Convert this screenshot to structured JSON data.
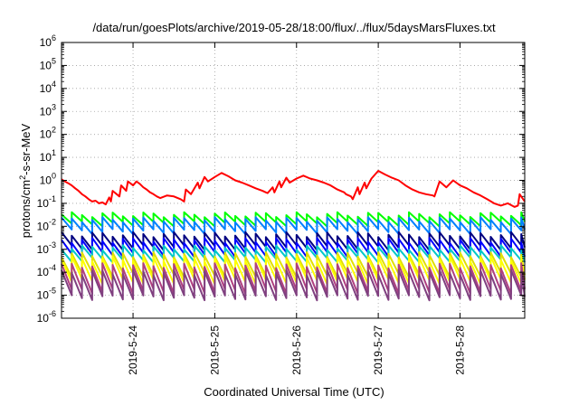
{
  "chart_data": {
    "type": "line",
    "title": "/data/run/goesPlots/archive/2019-05-28/18:00/flux/../flux/5daysMarsFluxes.txt",
    "xlabel": "Coordinated Universal Time (UTC)",
    "ylabel_parts": {
      "base": "protons/cm",
      "exp": "2",
      "rest": "-s-sr-MeV"
    },
    "y_scale": "log",
    "ylim": [
      1e-06,
      1000000.0
    ],
    "y_ticks": [
      {
        "base": "10",
        "exp": "-6",
        "value": 1e-06
      },
      {
        "base": "10",
        "exp": "-5",
        "value": 1e-05
      },
      {
        "base": "10",
        "exp": "-4",
        "value": 0.0001
      },
      {
        "base": "10",
        "exp": "-3",
        "value": 0.001
      },
      {
        "base": "10",
        "exp": "-2",
        "value": 0.01
      },
      {
        "base": "10",
        "exp": "-1",
        "value": 0.1
      },
      {
        "base": "10",
        "exp": "0",
        "value": 1
      },
      {
        "base": "10",
        "exp": "1",
        "value": 10.0
      },
      {
        "base": "10",
        "exp": "2",
        "value": 100.0
      },
      {
        "base": "10",
        "exp": "3",
        "value": 1000.0
      },
      {
        "base": "10",
        "exp": "4",
        "value": 10000.0
      },
      {
        "base": "10",
        "exp": "5",
        "value": 100000.0
      },
      {
        "base": "10",
        "exp": "6",
        "value": 1000000.0
      }
    ],
    "xlim": [
      "2019-05-23T03:00",
      "2019-05-28T19:00"
    ],
    "x_ticks": [
      {
        "label": "2019-5-24",
        "value": "2019-05-24T00:00"
      },
      {
        "label": "2019-5-25",
        "value": "2019-05-25T00:00"
      },
      {
        "label": "2019-5-26",
        "value": "2019-05-26T00:00"
      },
      {
        "label": "2019-5-27",
        "value": "2019-05-27T00:00"
      },
      {
        "label": "2019-5-28",
        "value": "2019-05-28T00:00"
      }
    ],
    "grid": true,
    "legend": "none",
    "series": [
      {
        "color": "#ff0000",
        "x": [
          "2019-05-23T03:00",
          "2019-05-23T04:00",
          "2019-05-23T05:00",
          "2019-05-23T06:00",
          "2019-05-23T07:00",
          "2019-05-23T08:00",
          "2019-05-23T09:00",
          "2019-05-23T10:00",
          "2019-05-23T11:00",
          "2019-05-23T12:00",
          "2019-05-23T13:00",
          "2019-05-23T14:00",
          "2019-05-23T15:00",
          "2019-05-23T16:00",
          "2019-05-23T17:00",
          "2019-05-23T17:30",
          "2019-05-23T18:00",
          "2019-05-23T20:00",
          "2019-05-23T20:30",
          "2019-05-23T22:00",
          "2019-05-23T22:30",
          "2019-05-24T00:00",
          "2019-05-24T01:00",
          "2019-05-24T02:00",
          "2019-05-24T03:00",
          "2019-05-24T04:00",
          "2019-05-24T05:00",
          "2019-05-24T06:00",
          "2019-05-24T07:00",
          "2019-05-24T08:00",
          "2019-05-24T10:00",
          "2019-05-24T12:00",
          "2019-05-24T14:00",
          "2019-05-24T15:00",
          "2019-05-24T15:30",
          "2019-05-24T17:00",
          "2019-05-24T19:00",
          "2019-05-24T19:30",
          "2019-05-24T21:00",
          "2019-05-24T22:00",
          "2019-05-25T00:00",
          "2019-05-25T02:00",
          "2019-05-25T04:00",
          "2019-05-25T06:00",
          "2019-05-25T08:00",
          "2019-05-25T10:00",
          "2019-05-25T12:00",
          "2019-05-25T14:00",
          "2019-05-25T15:00",
          "2019-05-25T15:30",
          "2019-05-25T17:00",
          "2019-05-25T17:30",
          "2019-05-25T19:00",
          "2019-05-25T19:30",
          "2019-05-25T21:00",
          "2019-05-25T22:00",
          "2019-05-26T00:00",
          "2019-05-26T02:00",
          "2019-05-26T04:00",
          "2019-05-26T06:00",
          "2019-05-26T08:00",
          "2019-05-26T10:00",
          "2019-05-26T12:00",
          "2019-05-26T14:00",
          "2019-05-26T14:30",
          "2019-05-26T16:00",
          "2019-05-26T16:30",
          "2019-05-26T18:00",
          "2019-05-26T18:30",
          "2019-05-26T20:00",
          "2019-05-26T20:30",
          "2019-05-26T22:00",
          "2019-05-27T00:00",
          "2019-05-27T02:00",
          "2019-05-27T04:00",
          "2019-05-27T06:00",
          "2019-05-27T08:00",
          "2019-05-27T10:00",
          "2019-05-27T12:00",
          "2019-05-27T14:00",
          "2019-05-27T16:00",
          "2019-05-27T16:30",
          "2019-05-27T18:00",
          "2019-05-27T20:00",
          "2019-05-27T22:00",
          "2019-05-28T00:00",
          "2019-05-28T02:00",
          "2019-05-28T04:00",
          "2019-05-28T06:00",
          "2019-05-28T08:00",
          "2019-05-28T10:00",
          "2019-05-28T12:00",
          "2019-05-28T14:00",
          "2019-05-28T16:00",
          "2019-05-28T17:00",
          "2019-05-28T17:30",
          "2019-05-28T19:00"
        ],
        "values": [
          1.1,
          0.9,
          0.75,
          0.6,
          0.45,
          0.35,
          0.25,
          0.2,
          0.15,
          0.12,
          0.13,
          0.1,
          0.11,
          0.09,
          0.18,
          0.12,
          0.35,
          0.2,
          0.6,
          0.35,
          0.9,
          0.6,
          0.9,
          0.7,
          0.5,
          0.4,
          0.3,
          0.25,
          0.2,
          0.17,
          0.22,
          0.2,
          0.15,
          0.12,
          0.4,
          0.25,
          0.8,
          0.45,
          1.4,
          0.9,
          1.4,
          2.1,
          1.5,
          1.0,
          0.8,
          0.6,
          0.45,
          0.35,
          0.3,
          0.28,
          0.5,
          0.3,
          0.9,
          0.5,
          1.3,
          0.8,
          1.2,
          1.6,
          1.2,
          1.0,
          0.8,
          0.6,
          0.4,
          0.3,
          0.25,
          0.2,
          0.15,
          0.5,
          0.25,
          0.8,
          0.45,
          1.2,
          2.6,
          1.8,
          1.3,
          1.0,
          0.6,
          0.4,
          0.3,
          0.25,
          0.22,
          0.2,
          0.9,
          0.5,
          1.0,
          0.6,
          0.45,
          0.3,
          0.22,
          0.15,
          0.1,
          0.08,
          0.1,
          0.07,
          0.08,
          0.25,
          0.12
        ]
      },
      {
        "color": "#00ff00",
        "values": [
          0.033,
          0.013
        ]
      },
      {
        "color": "#0080ff",
        "values": [
          0.02,
          0.006
        ]
      },
      {
        "color": "#000080",
        "values": [
          0.0045,
          0.0012
        ]
      },
      {
        "color": "#0000ff",
        "values": [
          0.0025,
          0.0006
        ]
      },
      {
        "color": "#00c8c8",
        "values": [
          0.0012,
          0.00035
        ]
      },
      {
        "color": "#e0e000",
        "values": [
          0.0006,
          8e-05
        ]
      },
      {
        "color": "#ffff00",
        "values": [
          0.0004,
          4e-05
        ]
      },
      {
        "color": "#b04080",
        "values": [
          0.0002,
          1.5e-05
        ]
      },
      {
        "color": "#804080",
        "values": [
          0.0001,
          8e-06
        ]
      }
    ]
  }
}
